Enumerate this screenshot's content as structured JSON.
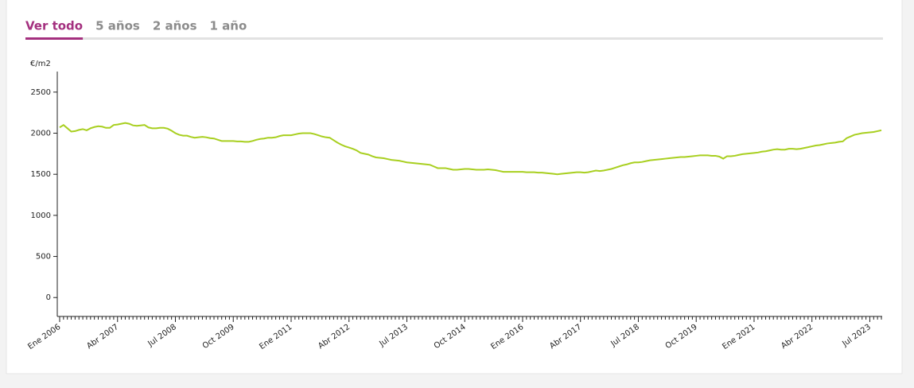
{
  "tabs": [
    "Ver todo",
    "5 años",
    "2 años",
    "1 año"
  ],
  "active_tab": 0,
  "chart_data": {
    "type": "line",
    "y_label": "€/m2",
    "color": "#a8cf1f",
    "ylim": [
      -230,
      2750
    ],
    "yticks": [
      0,
      500,
      1000,
      1500,
      2000,
      2500
    ],
    "categories": [
      "Ene 2006",
      null,
      null,
      null,
      null,
      null,
      null,
      null,
      null,
      null,
      null,
      null,
      null,
      null,
      null,
      "Abr 2007",
      null,
      null,
      null,
      null,
      null,
      null,
      null,
      null,
      null,
      null,
      null,
      null,
      null,
      null,
      "Jul 2008",
      null,
      null,
      null,
      null,
      null,
      null,
      null,
      null,
      null,
      null,
      null,
      null,
      null,
      null,
      "Oct 2009",
      null,
      null,
      null,
      null,
      null,
      null,
      null,
      null,
      null,
      null,
      null,
      null,
      null,
      null,
      "Ene 2011",
      null,
      null,
      null,
      null,
      null,
      null,
      null,
      null,
      null,
      null,
      null,
      null,
      null,
      null,
      "Abr 2012",
      null,
      null,
      null,
      null,
      null,
      null,
      null,
      null,
      null,
      null,
      null,
      null,
      null,
      null,
      "Jul 2013",
      null,
      null,
      null,
      null,
      null,
      null,
      null,
      null,
      null,
      null,
      null,
      null,
      null,
      null,
      "Oct 2014",
      null,
      null,
      null,
      null,
      null,
      null,
      null,
      null,
      null,
      null,
      null,
      null,
      null,
      null,
      "Ene 2016",
      null,
      null,
      null,
      null,
      null,
      null,
      null,
      null,
      null,
      null,
      null,
      null,
      null,
      null,
      "Abr 2017",
      null,
      null,
      null,
      null,
      null,
      null,
      null,
      null,
      null,
      null,
      null,
      null,
      null,
      null,
      "Jul 2018",
      null,
      null,
      null,
      null,
      null,
      null,
      null,
      null,
      null,
      null,
      null,
      null,
      null,
      null,
      "Oct 2019",
      null,
      null,
      null,
      null,
      null,
      null,
      null,
      null,
      null,
      null,
      null,
      null,
      null,
      null,
      "Ene 2021",
      null,
      null,
      null,
      null,
      null,
      null,
      null,
      null,
      null,
      null,
      null,
      null,
      null,
      null,
      "Abr 2022",
      null,
      null,
      null,
      null,
      null,
      null,
      null,
      null,
      null,
      null,
      null,
      null,
      null,
      null,
      "Jul 2023",
      null,
      null,
      null
    ],
    "values": [
      2070,
      2100,
      2060,
      2020,
      2025,
      2040,
      2050,
      2035,
      2060,
      2075,
      2085,
      2080,
      2065,
      2065,
      2100,
      2105,
      2115,
      2125,
      2115,
      2095,
      2090,
      2095,
      2100,
      2070,
      2060,
      2060,
      2065,
      2065,
      2055,
      2030,
      2000,
      1980,
      1970,
      1970,
      1955,
      1945,
      1950,
      1955,
      1950,
      1940,
      1935,
      1920,
      1905,
      1905,
      1905,
      1905,
      1900,
      1900,
      1895,
      1895,
      1905,
      1920,
      1930,
      1935,
      1945,
      1945,
      1950,
      1965,
      1975,
      1975,
      1975,
      1985,
      1995,
      2000,
      2000,
      2000,
      1990,
      1975,
      1960,
      1950,
      1945,
      1915,
      1885,
      1860,
      1840,
      1825,
      1810,
      1790,
      1760,
      1750,
      1740,
      1720,
      1705,
      1700,
      1695,
      1685,
      1675,
      1670,
      1665,
      1655,
      1645,
      1640,
      1635,
      1630,
      1625,
      1620,
      1615,
      1595,
      1575,
      1575,
      1575,
      1565,
      1555,
      1555,
      1560,
      1565,
      1565,
      1560,
      1555,
      1555,
      1555,
      1560,
      1555,
      1550,
      1540,
      1530,
      1530,
      1530,
      1530,
      1530,
      1530,
      1525,
      1525,
      1525,
      1520,
      1520,
      1515,
      1510,
      1505,
      1500,
      1505,
      1510,
      1515,
      1520,
      1525,
      1525,
      1520,
      1525,
      1535,
      1545,
      1540,
      1545,
      1555,
      1565,
      1580,
      1595,
      1610,
      1620,
      1635,
      1645,
      1645,
      1650,
      1660,
      1670,
      1675,
      1680,
      1685,
      1690,
      1695,
      1700,
      1705,
      1710,
      1710,
      1715,
      1720,
      1725,
      1730,
      1730,
      1730,
      1725,
      1725,
      1715,
      1690,
      1720,
      1720,
      1725,
      1735,
      1745,
      1750,
      1755,
      1760,
      1765,
      1775,
      1780,
      1790,
      1800,
      1805,
      1800,
      1800,
      1810,
      1810,
      1805,
      1810,
      1820,
      1830,
      1840,
      1850,
      1855,
      1865,
      1875,
      1880,
      1885,
      1895,
      1900,
      1940,
      1960,
      1980,
      1990,
      2000,
      2005,
      2010,
      2015,
      2025,
      2035
    ]
  }
}
